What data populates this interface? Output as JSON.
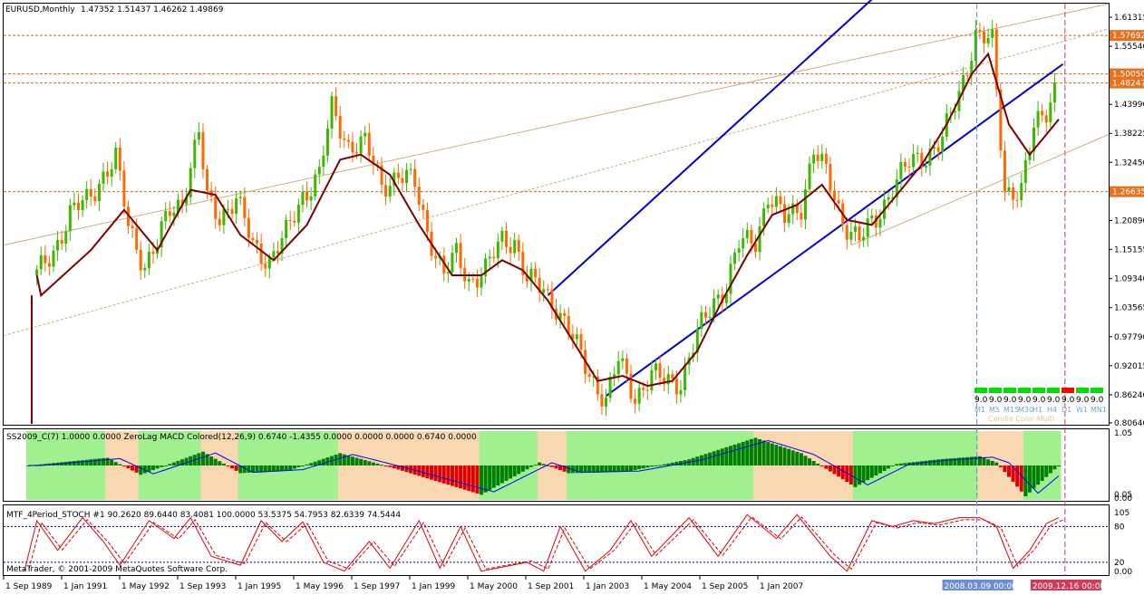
{
  "main_pane": {
    "symbol_label": "EURUSD,Monthly",
    "ohlc_label": "1.47352 1.51437 1.46262 1.49869"
  },
  "price_axis": {
    "ticks": [
      "1.61315",
      "1.55540",
      "1.49990",
      "1.43990",
      "1.38225",
      "1.32450",
      "1.26715",
      "1.20890",
      "1.15155",
      "1.09340",
      "1.03565",
      "0.97790",
      "0.92015",
      "0.86240",
      "0.80640"
    ],
    "level_labels": [
      "1.57692",
      "1.50050",
      "1.48247",
      "1.26635"
    ]
  },
  "macd_pane": {
    "label": "SS2009_C(7) 1.0000 0.0000   ZeroLag MACD Colored(12,26,9) 0.6740 -1.4355 0.0000 0.0000 0.0000 0.6740 0.0000",
    "axis_ticks": [
      "1.05",
      "0.05",
      "0.00"
    ]
  },
  "stoch_pane": {
    "label": "MTF_4Period_STOCH #1   90.2620 89.6440 83.4081 100.0000 53.5375 54.7953 82.6339 74.5444",
    "axis_ticks": [
      "105",
      "80",
      "20",
      "0.00"
    ],
    "copyright": "MetaTrader, © 2001-2009 MetaQuotes Software Corp."
  },
  "time_axis": {
    "labels": [
      "1 Sep 1989",
      "1 Jan 1991",
      "1 May 1992",
      "1 Sep 1993",
      "1 Jan 1995",
      "1 May 1996",
      "1 Sep 1997",
      "1 Jan 1999",
      "1 May 2000",
      "1 Sep 2001",
      "1 Jan 2003",
      "1 May 2004",
      "1 Sep 2005",
      "1 Jan 2007"
    ],
    "cursor_labels": [
      "2008.03.09 00:00",
      "2009.12.16 00:00"
    ]
  },
  "mtf_panel": {
    "timeframes": [
      "M1",
      "M5",
      "M15",
      "M30",
      "H1",
      "H4",
      "D1",
      "W1",
      "MN1"
    ],
    "colors": [
      "#00e000",
      "#00e000",
      "#00e000",
      "#00e000",
      "#00e000",
      "#00e000",
      "#ff0000",
      "#00e000",
      "#00e000"
    ],
    "value_label": "9.0",
    "title": "Candle Color Multi"
  },
  "chart_data": {
    "type": "candlestick",
    "title": "EURUSD,Monthly",
    "ylim": [
      0.8064,
      1.6132
    ],
    "x_range": [
      "1988-09",
      "2010-11"
    ],
    "close_series": [
      [
        "1989-05",
        1.1
      ],
      [
        "1989-09",
        1.15
      ],
      [
        "1990-01",
        1.22
      ],
      [
        "1990-05",
        1.25
      ],
      [
        "1990-09",
        1.3
      ],
      [
        "1990-12",
        1.33
      ],
      [
        "1991-03",
        1.2
      ],
      [
        "1991-07",
        1.12
      ],
      [
        "1991-10",
        1.16
      ],
      [
        "1992-01",
        1.23
      ],
      [
        "1992-04",
        1.25
      ],
      [
        "1992-08",
        1.38
      ],
      [
        "1992-10",
        1.25
      ],
      [
        "1993-01",
        1.22
      ],
      [
        "1993-05",
        1.25
      ],
      [
        "1993-09",
        1.16
      ],
      [
        "1994-01",
        1.13
      ],
      [
        "1994-05",
        1.18
      ],
      [
        "1994-09",
        1.26
      ],
      [
        "1995-01",
        1.3
      ],
      [
        "1995-04",
        1.43
      ],
      [
        "1995-08",
        1.36
      ],
      [
        "1995-12",
        1.36
      ],
      [
        "1996-04",
        1.28
      ],
      [
        "1996-08",
        1.3
      ],
      [
        "1996-12",
        1.28
      ],
      [
        "1997-03",
        1.19
      ],
      [
        "1997-07",
        1.1
      ],
      [
        "1997-10",
        1.14
      ],
      [
        "1998-01",
        1.09
      ],
      [
        "1998-05",
        1.11
      ],
      [
        "1998-09",
        1.17
      ],
      [
        "1998-12",
        1.17
      ],
      [
        "1999-03",
        1.09
      ],
      [
        "1999-07",
        1.07
      ],
      [
        "1999-10",
        1.04
      ],
      [
        "2000-01",
        0.99
      ],
      [
        "2000-05",
        0.92
      ],
      [
        "2000-10",
        0.85
      ],
      [
        "2001-01",
        0.93
      ],
      [
        "2001-05",
        0.86
      ],
      [
        "2001-09",
        0.9
      ],
      [
        "2001-12",
        0.89
      ],
      [
        "2002-04",
        0.89
      ],
      [
        "2002-08",
        0.98
      ],
      [
        "2002-12",
        1.05
      ],
      [
        "2003-03",
        1.08
      ],
      [
        "2003-06",
        1.16
      ],
      [
        "2003-10",
        1.17
      ],
      [
        "2004-01",
        1.26
      ],
      [
        "2004-05",
        1.21
      ],
      [
        "2004-09",
        1.24
      ],
      [
        "2004-12",
        1.35
      ],
      [
        "2005-03",
        1.3
      ],
      [
        "2005-07",
        1.21
      ],
      [
        "2005-11",
        1.17
      ],
      [
        "2006-03",
        1.21
      ],
      [
        "2006-07",
        1.28
      ],
      [
        "2006-11",
        1.32
      ],
      [
        "2007-03",
        1.34
      ],
      [
        "2007-07",
        1.37
      ],
      [
        "2007-11",
        1.46
      ],
      [
        "2008-03",
        1.58
      ],
      [
        "2008-07",
        1.56
      ],
      [
        "2008-10",
        1.27
      ],
      [
        "2009-02",
        1.27
      ],
      [
        "2009-05",
        1.39
      ],
      [
        "2009-08",
        1.43
      ],
      [
        "2009-11",
        1.5
      ]
    ],
    "moving_average": [
      [
        "1989-05",
        1.1
      ],
      [
        "1989-06",
        1.06
      ],
      [
        "1990-06",
        1.15
      ],
      [
        "1991-02",
        1.23
      ],
      [
        "1991-10",
        1.15
      ],
      [
        "1992-06",
        1.27
      ],
      [
        "1992-12",
        1.26
      ],
      [
        "1993-06",
        1.18
      ],
      [
        "1994-02",
        1.13
      ],
      [
        "1994-10",
        1.2
      ],
      [
        "1995-06",
        1.33
      ],
      [
        "1995-11",
        1.34
      ],
      [
        "1996-06",
        1.3
      ],
      [
        "1997-01",
        1.2
      ],
      [
        "1997-09",
        1.1
      ],
      [
        "1998-04",
        1.1
      ],
      [
        "1998-09",
        1.13
      ],
      [
        "1999-02",
        1.11
      ],
      [
        "1999-08",
        1.05
      ],
      [
        "2000-02",
        0.97
      ],
      [
        "2000-08",
        0.89
      ],
      [
        "2001-02",
        0.9
      ],
      [
        "2001-08",
        0.88
      ],
      [
        "2002-02",
        0.89
      ],
      [
        "2002-08",
        0.95
      ],
      [
        "2003-02",
        1.05
      ],
      [
        "2003-08",
        1.14
      ],
      [
        "2004-02",
        1.22
      ],
      [
        "2004-08",
        1.24
      ],
      [
        "2005-02",
        1.28
      ],
      [
        "2005-08",
        1.21
      ],
      [
        "2006-02",
        1.2
      ],
      [
        "2006-08",
        1.26
      ],
      [
        "2007-02",
        1.32
      ],
      [
        "2007-08",
        1.4
      ],
      [
        "2008-02",
        1.5
      ],
      [
        "2008-06",
        1.54
      ],
      [
        "2008-11",
        1.4
      ],
      [
        "2009-04",
        1.34
      ],
      [
        "2009-08",
        1.38
      ],
      [
        "2009-11",
        1.41
      ]
    ],
    "horizontal_levels": [
      1.57692,
      1.5005,
      1.48247,
      1.26635
    ],
    "vertical_markers": [
      "2008-03-09",
      "2009-12-16"
    ],
    "channels": [
      {
        "start": [
          "2000-10",
          0.86
        ],
        "end": [
          "2009-12",
          1.52
        ]
      },
      {
        "start": [
          "1999-08",
          1.06
        ],
        "end": [
          "2008-06",
          1.86
        ]
      }
    ],
    "support_resistance_lines": [
      {
        "start": [
          "1988-09",
          1.16
        ],
        "end": [
          "2010-11",
          1.64
        ]
      },
      {
        "start": [
          "1988-09",
          0.98
        ],
        "end": [
          "2010-11",
          1.59
        ]
      },
      {
        "start": [
          "2005-09",
          1.16
        ],
        "end": [
          "2010-11",
          1.38
        ]
      }
    ],
    "macd": {
      "type": "histogram",
      "values": [
        [
          "1989-03",
          0.0
        ],
        [
          "1990-06",
          0.2
        ],
        [
          "1990-10",
          0.25
        ],
        [
          "1991-06",
          -0.3
        ],
        [
          "1992-09",
          0.45
        ],
        [
          "1993-06",
          -0.25
        ],
        [
          "1994-06",
          -0.15
        ],
        [
          "1995-06",
          0.4
        ],
        [
          "1996-06",
          -0.05
        ],
        [
          "1998-04",
          -0.95
        ],
        [
          "1999-06",
          0.1
        ],
        [
          "2000-01",
          -0.25
        ],
        [
          "2001-03",
          -0.2
        ],
        [
          "2002-06",
          0.2
        ],
        [
          "2003-10",
          0.9
        ],
        [
          "2004-09",
          0.4
        ],
        [
          "2005-10",
          -0.7
        ],
        [
          "2006-08",
          0.05
        ],
        [
          "2007-06",
          0.2
        ],
        [
          "2008-04",
          0.3
        ],
        [
          "2008-08",
          0.1
        ],
        [
          "2009-03",
          -1.0
        ],
        [
          "2009-11",
          0.0
        ]
      ]
    },
    "stochastic": {
      "type": "line",
      "ylim": [
        0,
        105
      ],
      "levels": [
        20,
        80
      ],
      "values": [
        [
          "1989-02",
          5
        ],
        [
          "1989-05",
          90
        ],
        [
          "1989-10",
          40
        ],
        [
          "1990-04",
          95
        ],
        [
          "1990-09",
          55
        ],
        [
          "1991-01",
          15
        ],
        [
          "1991-08",
          90
        ],
        [
          "1992-02",
          60
        ],
        [
          "1992-06",
          95
        ],
        [
          "1992-11",
          30
        ],
        [
          "1993-06",
          15
        ],
        [
          "1993-11",
          90
        ],
        [
          "1994-04",
          55
        ],
        [
          "1994-09",
          88
        ],
        [
          "1995-02",
          20
        ],
        [
          "1995-07",
          5
        ],
        [
          "1996-01",
          55
        ],
        [
          "1996-06",
          10
        ],
        [
          "1997-01",
          90
        ],
        [
          "1997-06",
          10
        ],
        [
          "1997-11",
          80
        ],
        [
          "1998-04",
          5
        ],
        [
          "1999-03",
          20
        ],
        [
          "1999-07",
          5
        ],
        [
          "1999-11",
          80
        ],
        [
          "2000-05",
          5
        ],
        [
          "2000-11",
          40
        ],
        [
          "2001-04",
          90
        ],
        [
          "2001-09",
          30
        ],
        [
          "2002-06",
          95
        ],
        [
          "2003-01",
          30
        ],
        [
          "2003-08",
          100
        ],
        [
          "2004-03",
          60
        ],
        [
          "2004-08",
          100
        ],
        [
          "2005-04",
          30
        ],
        [
          "2005-08",
          5
        ],
        [
          "2006-02",
          90
        ],
        [
          "2006-07",
          80
        ],
        [
          "2006-12",
          90
        ],
        [
          "2007-05",
          85
        ],
        [
          "2007-11",
          95
        ],
        [
          "2008-04",
          95
        ],
        [
          "2008-08",
          80
        ],
        [
          "2008-12",
          10
        ],
        [
          "2009-04",
          40
        ],
        [
          "2009-08",
          85
        ],
        [
          "2009-11",
          95
        ]
      ]
    },
    "grid": false
  }
}
